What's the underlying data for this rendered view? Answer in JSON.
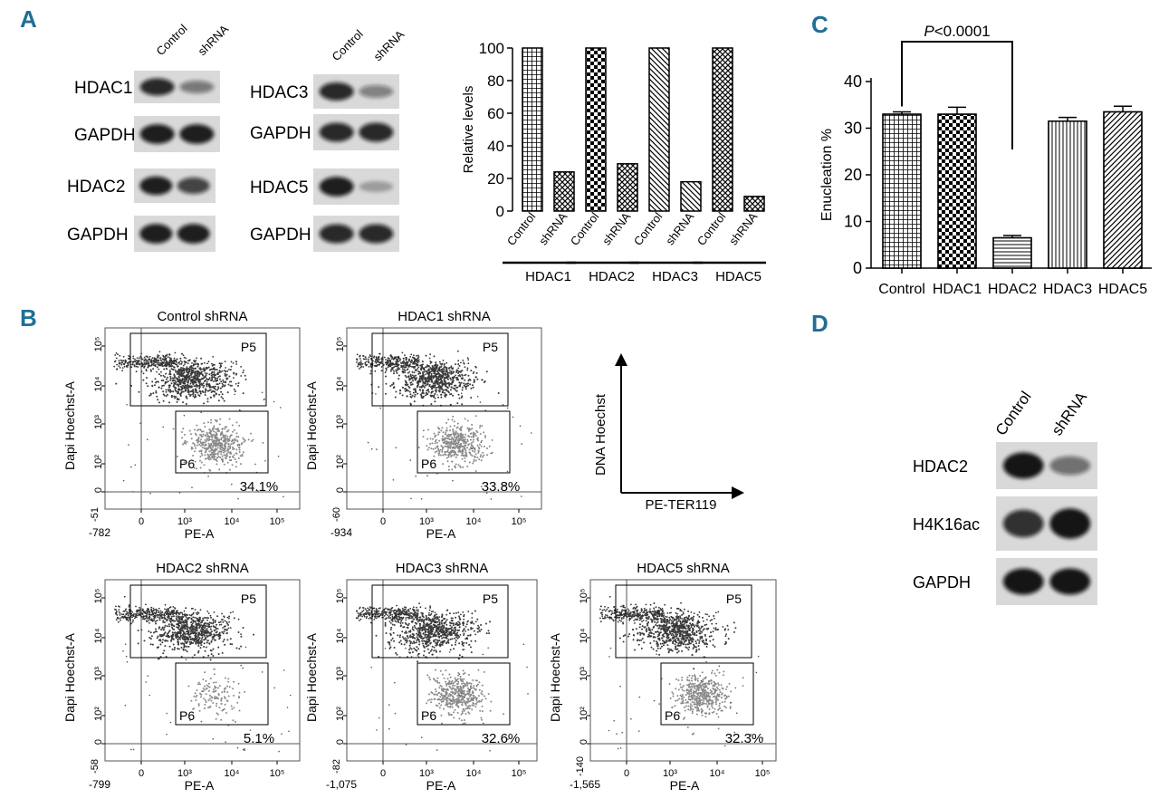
{
  "panel_labels": {
    "a": "A",
    "b": "B",
    "c": "C",
    "d": "D"
  },
  "panel_a": {
    "blots": [
      {
        "lanes": [
          "Control",
          "shRNA"
        ],
        "rows": [
          {
            "label": "HDAC1",
            "control": 0.85,
            "shrna": 0.4
          },
          {
            "label": "GAPDH",
            "control": 0.9,
            "shrna": 0.9
          }
        ]
      },
      {
        "lanes": [
          "Control",
          "shRNA"
        ],
        "rows": [
          {
            "label": "HDAC3",
            "control": 0.85,
            "shrna": 0.35
          },
          {
            "label": "GAPDH",
            "control": 0.85,
            "shrna": 0.85
          }
        ]
      },
      {
        "lanes": [],
        "rows": [
          {
            "label": "HDAC2",
            "control": 0.9,
            "shrna": 0.7
          },
          {
            "label": "GAPDH",
            "control": 0.9,
            "shrna": 0.9
          }
        ]
      },
      {
        "lanes": [],
        "rows": [
          {
            "label": "HDAC5",
            "control": 0.9,
            "shrna": 0.15
          },
          {
            "label": "GAPDH",
            "control": 0.85,
            "shrna": 0.85
          }
        ]
      }
    ]
  },
  "chart_data": [
    {
      "type": "bar",
      "ylabel": "Relative levels",
      "ylim": [
        0,
        100
      ],
      "yticks": [
        0,
        20,
        40,
        60,
        80,
        100
      ],
      "groups": [
        "HDAC1",
        "HDAC2",
        "HDAC3",
        "HDAC5"
      ],
      "bar_labels": [
        "Control",
        "shRNA"
      ],
      "values": [
        [
          100,
          24
        ],
        [
          100,
          29
        ],
        [
          100,
          18
        ],
        [
          100,
          9
        ]
      ]
    },
    {
      "type": "bar",
      "ylabel": "Enucleation %",
      "ylim": [
        0,
        40
      ],
      "yticks": [
        0,
        10,
        20,
        30,
        40
      ],
      "categories": [
        "Control",
        "HDAC1",
        "HDAC2",
        "HDAC3",
        "HDAC5"
      ],
      "values": [
        33,
        33,
        6.5,
        31.5,
        33.5
      ],
      "errors": [
        0.5,
        1.5,
        0.5,
        0.8,
        1.2
      ],
      "annotation": "P<0.0001"
    }
  ],
  "panel_b": {
    "y_axis_label": "Dapi Hoechst-A",
    "x_axis_label": "PE-A",
    "gate_upper": "P5",
    "gate_lower": "P6",
    "plots": [
      {
        "title": "Control shRNA",
        "percent": "34.1%",
        "x_min": "-782",
        "y_min": "-51",
        "p6_density": 0.9
      },
      {
        "title": "HDAC1 shRNA",
        "percent": "33.8%",
        "x_min": "-934",
        "y_min": "-60",
        "p6_density": 0.85
      },
      {
        "title": "HDAC2 shRNA",
        "percent": "5.1%",
        "x_min": "-799",
        "y_min": "-58",
        "p6_density": 0.25
      },
      {
        "title": "HDAC3 shRNA",
        "percent": "32.6%",
        "x_min": "-1,075",
        "y_min": "-82",
        "p6_density": 0.85
      },
      {
        "title": "HDAC5 shRNA",
        "percent": "32.3%",
        "x_min": "-1,565",
        "y_min": "-140",
        "p6_density": 0.85
      }
    ],
    "key": {
      "y_label": "DNA Hoechst",
      "x_label": "PE-TER119"
    }
  },
  "panel_d": {
    "lanes": [
      "Control",
      "shRNA"
    ],
    "rows": [
      {
        "label": "HDAC2",
        "control": 0.95,
        "shrna": 0.45
      },
      {
        "label": "H4K16ac",
        "control": 0.8,
        "shrna": 0.95
      },
      {
        "label": "GAPDH",
        "control": 0.95,
        "shrna": 0.95
      }
    ]
  }
}
